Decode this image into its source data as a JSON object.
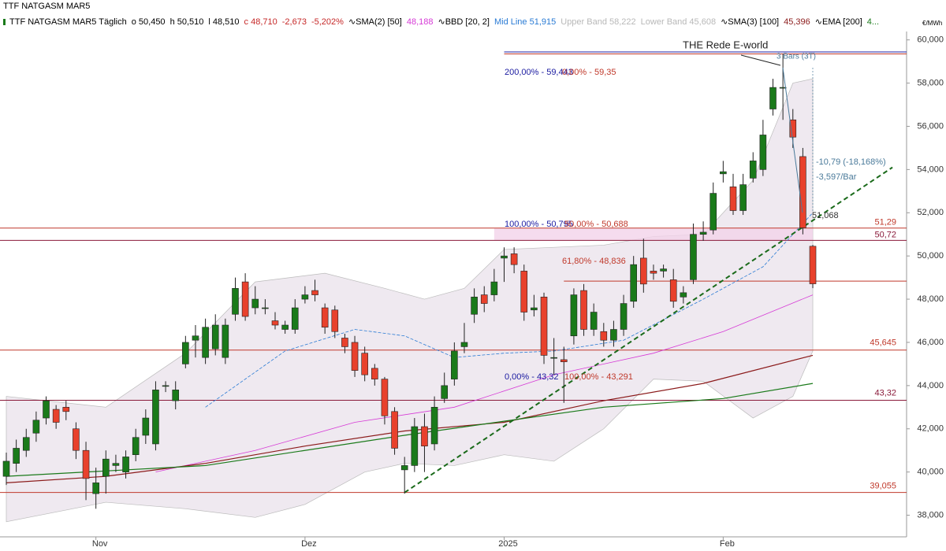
{
  "chart_data": {
    "type": "candlestick",
    "title": "TTF NATGASM MAR5",
    "header": [
      {
        "text": "TTF NATGASM MAR5 Täglich",
        "color": "#000000"
      },
      {
        "text": "o 50,450",
        "color": "#000000"
      },
      {
        "text": "h 50,510",
        "color": "#000000"
      },
      {
        "text": "l 48,510",
        "color": "#000000"
      },
      {
        "text": "c 48,710",
        "color": "#c62828"
      },
      {
        "text": "-2,673",
        "color": "#c62828"
      },
      {
        "text": "-5,202%",
        "color": "#c62828"
      },
      {
        "text": "∿SMA(2) [50]",
        "color": "#000000"
      },
      {
        "text": "48,188",
        "color": "#d63ad6"
      },
      {
        "text": "∿BBD [20, 2]",
        "color": "#000000"
      },
      {
        "text": "Mid Line 51,915",
        "color": "#2a7bd4"
      },
      {
        "text": "Upper Band 58,222",
        "color": "#b8b8b8"
      },
      {
        "text": "Lower Band 45,608",
        "color": "#b8b8b8"
      },
      {
        "text": "∿SMA(3) [100]",
        "color": "#000000"
      },
      {
        "text": "45,396",
        "color": "#8b1a1a"
      },
      {
        "text": "∿EMA [200]",
        "color": "#000000"
      },
      {
        "text": "4...",
        "color": "#1a7a1a"
      }
    ],
    "unit": "€/MWh",
    "categories": [
      null,
      null,
      null,
      null,
      null,
      null,
      null,
      null,
      null,
      "Nov",
      null,
      null,
      null,
      null,
      null,
      null,
      null,
      null,
      null,
      null,
      null,
      null,
      null,
      null,
      null,
      null,
      null,
      null,
      null,
      null,
      "Dez",
      null,
      null,
      null,
      null,
      null,
      null,
      null,
      null,
      null,
      null,
      null,
      null,
      null,
      null,
      null,
      null,
      null,
      null,
      null,
      "2025",
      null,
      null,
      null,
      null,
      null,
      null,
      null,
      null,
      null,
      null,
      null,
      null,
      null,
      null,
      null,
      null,
      null,
      null,
      null,
      null,
      null,
      "Feb",
      null,
      null,
      null,
      null,
      null,
      null,
      null,
      null,
      null
    ],
    "open": [
      39.8,
      40.4,
      41.0,
      41.8,
      42.5,
      42.9,
      43.0,
      42.0,
      41.0,
      39.0,
      39.8,
      40.3,
      40.0,
      40.8,
      41.7,
      41.3,
      44.0,
      43.3,
      45.0,
      46.1,
      45.3,
      45.7,
      45.3,
      47.3,
      48.8,
      47.6,
      47.6,
      47.0,
      46.6,
      46.6,
      48.0,
      48.4,
      47.6,
      47.5,
      46.2,
      46.0,
      45.5,
      44.8,
      44.3,
      42.8,
      40.1,
      40.3,
      42.1,
      41.3,
      43.4,
      44.3,
      45.8,
      47.3,
      48.2,
      48.2,
      49.9,
      50.1,
      49.3,
      47.5,
      48.1,
      45.3,
      45.2,
      46.3,
      48.4,
      46.6,
      46.5,
      46.1,
      46.6,
      47.9,
      49.9,
      49.3,
      49.3,
      48.9,
      48.1,
      48.9,
      51.0,
      51.2,
      53.8,
      53.2,
      52.1,
      53.6,
      54.0,
      56.8,
      57.8,
      56.3,
      54.6,
      50.45
    ],
    "high": [
      40.9,
      41.5,
      42.0,
      42.8,
      43.5,
      43.1,
      43.3,
      42.3,
      41.4,
      40.2,
      41.0,
      40.8,
      41.0,
      42.0,
      42.9,
      44.2,
      44.2,
      44.2,
      46.3,
      46.8,
      47.1,
      47.3,
      47.1,
      49.0,
      49.2,
      48.6,
      48.0,
      47.4,
      47.0,
      48.0,
      48.6,
      48.9,
      47.8,
      47.7,
      46.4,
      46.3,
      45.8,
      45.0,
      44.4,
      43.0,
      40.7,
      42.5,
      42.7,
      43.5,
      44.6,
      46.0,
      46.9,
      48.5,
      48.6,
      49.4,
      50.4,
      50.4,
      49.6,
      48.2,
      48.3,
      46.2,
      45.8,
      48.5,
      48.7,
      47.8,
      46.9,
      47.0,
      48.2,
      50.0,
      50.8,
      49.6,
      49.6,
      49.4,
      48.6,
      51.5,
      51.6,
      53.4,
      54.4,
      53.8,
      53.8,
      54.8,
      56.3,
      58.2,
      59.35,
      56.8,
      55.0,
      50.51
    ],
    "low": [
      39.4,
      40.0,
      40.7,
      41.4,
      42.2,
      42.0,
      42.4,
      40.6,
      38.7,
      38.3,
      39.0,
      40.0,
      39.7,
      40.5,
      41.3,
      41.0,
      43.7,
      42.9,
      44.8,
      45.3,
      45.0,
      45.4,
      45.0,
      47.0,
      47.0,
      47.3,
      47.3,
      46.6,
      46.4,
      46.4,
      47.8,
      47.9,
      46.4,
      46.2,
      45.5,
      44.4,
      44.2,
      44.0,
      42.2,
      40.8,
      39.0,
      40.0,
      40.0,
      41.0,
      43.2,
      44.0,
      45.5,
      46.9,
      47.4,
      47.9,
      48.8,
      49.2,
      47.0,
      47.2,
      45.0,
      44.5,
      43.2,
      45.9,
      46.3,
      46.3,
      45.8,
      45.8,
      46.3,
      47.6,
      48.3,
      48.9,
      49.0,
      47.6,
      47.8,
      48.7,
      50.7,
      51.0,
      53.4,
      51.9,
      51.9,
      53.4,
      53.7,
      56.5,
      56.3,
      55.0,
      51.0,
      48.51
    ],
    "close": [
      40.5,
      41.1,
      41.6,
      42.4,
      43.3,
      42.3,
      42.8,
      41.0,
      39.7,
      39.5,
      40.6,
      40.4,
      40.7,
      41.6,
      42.5,
      43.8,
      44.0,
      43.8,
      46.0,
      46.3,
      46.7,
      46.8,
      46.8,
      48.5,
      47.2,
      48.0,
      47.6,
      46.8,
      46.8,
      47.6,
      48.2,
      48.2,
      46.7,
      46.5,
      45.8,
      44.7,
      44.5,
      44.3,
      42.6,
      41.1,
      40.3,
      42.1,
      41.2,
      43.0,
      44.0,
      45.6,
      46.0,
      48.1,
      47.8,
      48.8,
      50.0,
      49.6,
      47.4,
      47.6,
      45.4,
      45.3,
      45.1,
      48.2,
      46.6,
      47.4,
      46.1,
      46.6,
      47.8,
      49.6,
      48.7,
      49.2,
      49.4,
      47.9,
      48.3,
      51.0,
      51.1,
      52.9,
      53.9,
      52.1,
      53.3,
      54.4,
      55.6,
      57.8,
      57.8,
      55.5,
      51.3,
      48.71
    ],
    "up_color": "#1a7a1a",
    "down_color": "#e8412c",
    "band": {
      "color": "#efe9f0",
      "upper": [
        [
          0,
          43.5
        ],
        [
          10,
          43.0
        ],
        [
          18,
          45.5
        ],
        [
          25,
          48.8
        ],
        [
          32,
          49.2
        ],
        [
          38,
          48.5
        ],
        [
          42,
          48.0
        ],
        [
          46,
          48.5
        ],
        [
          50,
          50.3
        ],
        [
          60,
          50.5
        ],
        [
          65,
          50.9
        ],
        [
          70,
          51.0
        ],
        [
          75,
          53.5
        ],
        [
          79,
          58.0
        ],
        [
          81,
          58.2
        ]
      ],
      "lower": [
        [
          0,
          37.7
        ],
        [
          10,
          38.6
        ],
        [
          18,
          38.3
        ],
        [
          25,
          37.9
        ],
        [
          30,
          38.5
        ],
        [
          36,
          40.0
        ],
        [
          40,
          40.4
        ],
        [
          45,
          40.3
        ],
        [
          50,
          40.8
        ],
        [
          55,
          40.5
        ],
        [
          60,
          42.0
        ],
        [
          65,
          44.3
        ],
        [
          70,
          44.2
        ],
        [
          75,
          42.5
        ],
        [
          79,
          43.5
        ],
        [
          81,
          45.6
        ]
      ]
    },
    "overlays": [
      {
        "color": "#2a7bd4",
        "dash": true,
        "width": 0.8,
        "points": [
          [
            20,
            43.0
          ],
          [
            28,
            45.6
          ],
          [
            35,
            46.6
          ],
          [
            40,
            46.3
          ],
          [
            45,
            45.3
          ],
          [
            50,
            45.5
          ],
          [
            55,
            45.6
          ],
          [
            62,
            46.1
          ],
          [
            70,
            48.0
          ],
          [
            76,
            49.5
          ],
          [
            81,
            52.0
          ]
        ]
      },
      {
        "color": "#d63ad6",
        "dash": false,
        "width": 0.8,
        "points": [
          [
            15,
            40.0
          ],
          [
            25,
            41.0
          ],
          [
            35,
            42.3
          ],
          [
            45,
            43.0
          ],
          [
            55,
            44.5
          ],
          [
            65,
            45.5
          ],
          [
            72,
            46.5
          ],
          [
            81,
            48.2
          ]
        ]
      },
      {
        "color": "#8b1a1a",
        "dash": false,
        "width": 1.2,
        "points": [
          [
            0,
            39.5
          ],
          [
            10,
            39.8
          ],
          [
            20,
            40.4
          ],
          [
            30,
            41.2
          ],
          [
            40,
            41.9
          ],
          [
            50,
            42.3
          ],
          [
            60,
            43.3
          ],
          [
            70,
            44.1
          ],
          [
            81,
            45.4
          ]
        ]
      },
      {
        "color": "#1a7a1a",
        "dash": false,
        "width": 1.2,
        "points": [
          [
            0,
            39.8
          ],
          [
            20,
            40.3
          ],
          [
            40,
            41.7
          ],
          [
            60,
            43.0
          ],
          [
            72,
            43.4
          ],
          [
            81,
            44.1
          ]
        ]
      },
      {
        "color": "#1a6a1a",
        "dash": true,
        "width": 2,
        "points": [
          [
            40,
            39.05
          ],
          [
            89,
            54.1
          ]
        ]
      }
    ],
    "levels": [
      {
        "value": 51.29,
        "label": "51,29",
        "color": "#c0392b",
        "from": 0
      },
      {
        "value": 50.72,
        "label": "50,72",
        "color": "#8a1a3a",
        "from": 0
      },
      {
        "value": 45.645,
        "label": "45,645",
        "color": "#c0392b",
        "from": 0
      },
      {
        "value": 43.32,
        "label": "43,32",
        "color": "#8a1a3a",
        "from": 0
      },
      {
        "value": 39.055,
        "label": "39,055",
        "color": "#c0392b",
        "from": 0
      },
      {
        "value": 48.836,
        "label": null,
        "color": "#c0392b",
        "from": 56
      },
      {
        "value": 59.443,
        "label": null,
        "color": "#1a1aa0",
        "from": 50
      },
      {
        "value": 59.35,
        "label": null,
        "color": "#c0392b",
        "from": 50
      }
    ],
    "fib_labels": [
      {
        "text": "200,00% - 59,443",
        "color": "#1a1aa0"
      },
      {
        "text": "0,00% - 59,35",
        "color": "#c0392b"
      },
      {
        "text": "100,00% - 50,795",
        "color": "#1a1aa0"
      },
      {
        "text": "50,00% - 50,688",
        "color": "#c0392b"
      },
      {
        "text": "61,80% - 48,836",
        "color": "#c0392b"
      },
      {
        "text": "0,00% - 43,32",
        "color": "#1a1aa0"
      },
      {
        "text": "100,00% - 43,291",
        "color": "#c0392b"
      }
    ],
    "annotations": [
      "THE Rede E-world",
      "3 Bars (3T)",
      "-10,79 (-18,168%)",
      "-3,597/Bar",
      "51,068"
    ],
    "ylim": [
      37,
      61.3
    ],
    "yticks": [
      {
        "value": 38,
        "label": "38,000"
      },
      {
        "value": 40,
        "label": "40,000"
      },
      {
        "value": 42,
        "label": "42,000"
      },
      {
        "value": 44,
        "label": "44,000"
      },
      {
        "value": 46,
        "label": "46,000"
      },
      {
        "value": 48,
        "label": "48,000"
      },
      {
        "value": 50,
        "label": "50,000"
      },
      {
        "value": 52,
        "label": "52,000"
      },
      {
        "value": 54,
        "label": "54,000"
      },
      {
        "value": 56,
        "label": "56,000"
      },
      {
        "value": 58,
        "label": "58,000"
      },
      {
        "value": 60,
        "label": "60,000"
      }
    ]
  }
}
